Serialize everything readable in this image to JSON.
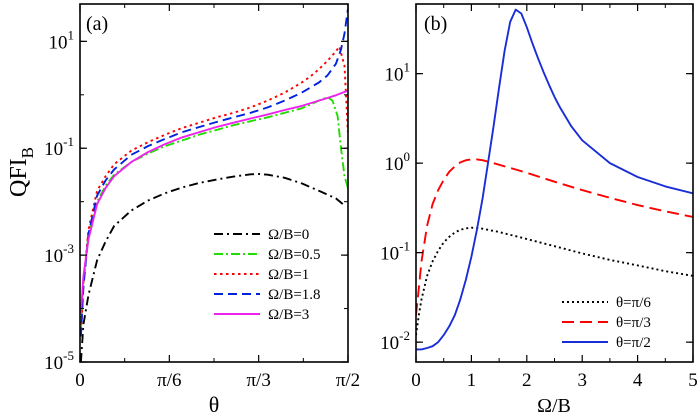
{
  "figure": {
    "y_label_main": "QFI",
    "y_label_sub": "B"
  },
  "chart_data": [
    {
      "id": "a",
      "type": "line",
      "panel_label": "(a)",
      "xlabel": "θ",
      "ylabel": "QFI_B",
      "xscale": "linear",
      "yscale": "log",
      "xlim": [
        0,
        1.5708
      ],
      "ylim": [
        1e-05,
        50
      ],
      "xticks": [
        0,
        0.5236,
        1.0472,
        1.5708
      ],
      "xtick_labels": [
        "0",
        "π/6",
        "π/3",
        "π/2"
      ],
      "yticks": [
        1e-05,
        0.001,
        0.1,
        10
      ],
      "ytick_mantissa": [
        "10",
        "10",
        "10",
        "10"
      ],
      "ytick_exponent": [
        "-5",
        "-3",
        "-1",
        "1"
      ],
      "legend_position": "bottom-right",
      "series": [
        {
          "name": "Ω/B=0",
          "color": "#000000",
          "dash": "9 4 2 4",
          "x": [
            0.005,
            0.02,
            0.05,
            0.1,
            0.15,
            0.2,
            0.3,
            0.4,
            0.5,
            0.6,
            0.7,
            0.8,
            0.9,
            1.0,
            1.05,
            1.1,
            1.2,
            1.3,
            1.4,
            1.5,
            1.55
          ],
          "y": [
            1e-05,
            5e-05,
            0.00018,
            0.0008,
            0.0018,
            0.0035,
            0.0068,
            0.0105,
            0.0145,
            0.0185,
            0.0225,
            0.026,
            0.0295,
            0.0325,
            0.033,
            0.032,
            0.028,
            0.022,
            0.016,
            0.0115,
            0.0085
          ]
        },
        {
          "name": "Ω/B=0.5",
          "color": "#22dd00",
          "dash": "9 3 2 3",
          "x": [
            0.005,
            0.02,
            0.05,
            0.1,
            0.15,
            0.2,
            0.3,
            0.4,
            0.5,
            0.6,
            0.7,
            0.8,
            0.9,
            1.0,
            1.1,
            1.2,
            1.3,
            1.4,
            1.45,
            1.48,
            1.51,
            1.53,
            1.55,
            1.57
          ],
          "y": [
            4e-05,
            0.0003,
            0.0025,
            0.01,
            0.02,
            0.032,
            0.055,
            0.08,
            0.11,
            0.14,
            0.18,
            0.22,
            0.27,
            0.32,
            0.38,
            0.46,
            0.56,
            0.78,
            0.9,
            0.78,
            0.4,
            0.1,
            0.03,
            0.018
          ]
        },
        {
          "name": "Ω/B=1",
          "color": "#ff0000",
          "dash": "2.5 3.5",
          "x": [
            0.005,
            0.02,
            0.05,
            0.1,
            0.15,
            0.2,
            0.3,
            0.4,
            0.5,
            0.6,
            0.7,
            0.8,
            0.9,
            1.0,
            1.1,
            1.2,
            1.3,
            1.35,
            1.4,
            1.45,
            1.5,
            1.52,
            1.55,
            1.57
          ],
          "y": [
            3e-05,
            0.0003,
            0.003,
            0.016,
            0.03,
            0.05,
            0.09,
            0.13,
            0.18,
            0.24,
            0.3,
            0.38,
            0.46,
            0.58,
            0.78,
            1.1,
            1.7,
            2.2,
            3.0,
            4.3,
            6.5,
            8.0,
            3.5,
            0.2
          ]
        },
        {
          "name": "Ω/B=1.8",
          "color": "#0022dd",
          "dash": "9 5",
          "x": [
            0.005,
            0.02,
            0.05,
            0.1,
            0.15,
            0.2,
            0.3,
            0.4,
            0.5,
            0.6,
            0.7,
            0.8,
            0.9,
            1.0,
            1.1,
            1.2,
            1.3,
            1.4,
            1.45,
            1.5,
            1.53,
            1.55,
            1.57
          ],
          "y": [
            3e-05,
            0.00025,
            0.0025,
            0.013,
            0.025,
            0.04,
            0.075,
            0.11,
            0.15,
            0.2,
            0.25,
            0.31,
            0.38,
            0.46,
            0.58,
            0.78,
            1.1,
            1.7,
            2.3,
            3.8,
            7.0,
            14,
            40
          ]
        },
        {
          "name": "Ω/B=3",
          "color": "#ee22ee",
          "dash": "",
          "x": [
            0.005,
            0.02,
            0.05,
            0.1,
            0.15,
            0.2,
            0.3,
            0.4,
            0.5,
            0.6,
            0.7,
            0.8,
            0.9,
            1.0,
            1.1,
            1.2,
            1.3,
            1.4,
            1.5,
            1.57
          ],
          "y": [
            8e-05,
            0.0004,
            0.002,
            0.009,
            0.018,
            0.03,
            0.055,
            0.085,
            0.12,
            0.16,
            0.2,
            0.25,
            0.3,
            0.36,
            0.43,
            0.52,
            0.62,
            0.78,
            0.98,
            1.2
          ]
        }
      ]
    },
    {
      "id": "b",
      "type": "line",
      "panel_label": "(b)",
      "xlabel": "Ω/B",
      "ylabel": "",
      "xscale": "linear",
      "yscale": "log",
      "xlim": [
        0,
        5
      ],
      "ylim": [
        0.006,
        60
      ],
      "xticks": [
        0,
        1,
        2,
        3,
        4,
        5
      ],
      "xtick_labels": [
        "0",
        "1",
        "2",
        "3",
        "4",
        "5"
      ],
      "yticks": [
        0.01,
        0.1,
        1,
        10
      ],
      "ytick_mantissa": [
        "10",
        "10",
        "10",
        "10"
      ],
      "ytick_exponent": [
        "-2",
        "-1",
        "0",
        "1"
      ],
      "legend_position": "bottom-right",
      "series": [
        {
          "name": "θ=π/6",
          "color": "#000000",
          "dash": "2 3",
          "x": [
            0,
            0.05,
            0.1,
            0.2,
            0.3,
            0.4,
            0.5,
            0.6,
            0.7,
            0.8,
            0.9,
            1.0,
            1.2,
            1.5,
            2.0,
            2.5,
            3.0,
            3.5,
            4.0,
            4.5,
            5.0
          ],
          "y": [
            0.012,
            0.02,
            0.03,
            0.055,
            0.08,
            0.105,
            0.13,
            0.15,
            0.168,
            0.18,
            0.187,
            0.19,
            0.185,
            0.17,
            0.142,
            0.118,
            0.098,
            0.083,
            0.072,
            0.062,
            0.055
          ]
        },
        {
          "name": "θ=π/3",
          "color": "#ff0000",
          "dash": "12 6",
          "x": [
            0,
            0.05,
            0.1,
            0.2,
            0.3,
            0.4,
            0.5,
            0.6,
            0.7,
            0.8,
            0.9,
            1.0,
            1.1,
            1.2,
            1.4,
            1.6,
            1.8,
            2.0,
            2.5,
            3.0,
            3.5,
            4.0,
            4.5,
            5.0
          ],
          "y": [
            0.02,
            0.04,
            0.08,
            0.2,
            0.35,
            0.5,
            0.65,
            0.8,
            0.92,
            1.02,
            1.08,
            1.1,
            1.1,
            1.08,
            1.0,
            0.92,
            0.85,
            0.78,
            0.62,
            0.5,
            0.41,
            0.34,
            0.29,
            0.25
          ]
        },
        {
          "name": "θ=π/2",
          "color": "#1a2ed8",
          "dash": "",
          "x": [
            0,
            0.1,
            0.2,
            0.3,
            0.4,
            0.5,
            0.6,
            0.7,
            0.8,
            0.9,
            1.0,
            1.1,
            1.2,
            1.3,
            1.4,
            1.5,
            1.6,
            1.7,
            1.8,
            1.9,
            2.0,
            2.1,
            2.2,
            2.3,
            2.4,
            2.5,
            2.6,
            2.8,
            3.0,
            3.5,
            4.0,
            4.5,
            5.0
          ],
          "y": [
            0.0083,
            0.0083,
            0.0086,
            0.009,
            0.01,
            0.012,
            0.015,
            0.02,
            0.03,
            0.05,
            0.09,
            0.18,
            0.4,
            1.0,
            2.6,
            7.0,
            18,
            38,
            52,
            47,
            33,
            22,
            15,
            10.5,
            7.5,
            5.5,
            4.2,
            2.6,
            1.8,
            1.0,
            0.7,
            0.55,
            0.46
          ]
        }
      ]
    }
  ]
}
